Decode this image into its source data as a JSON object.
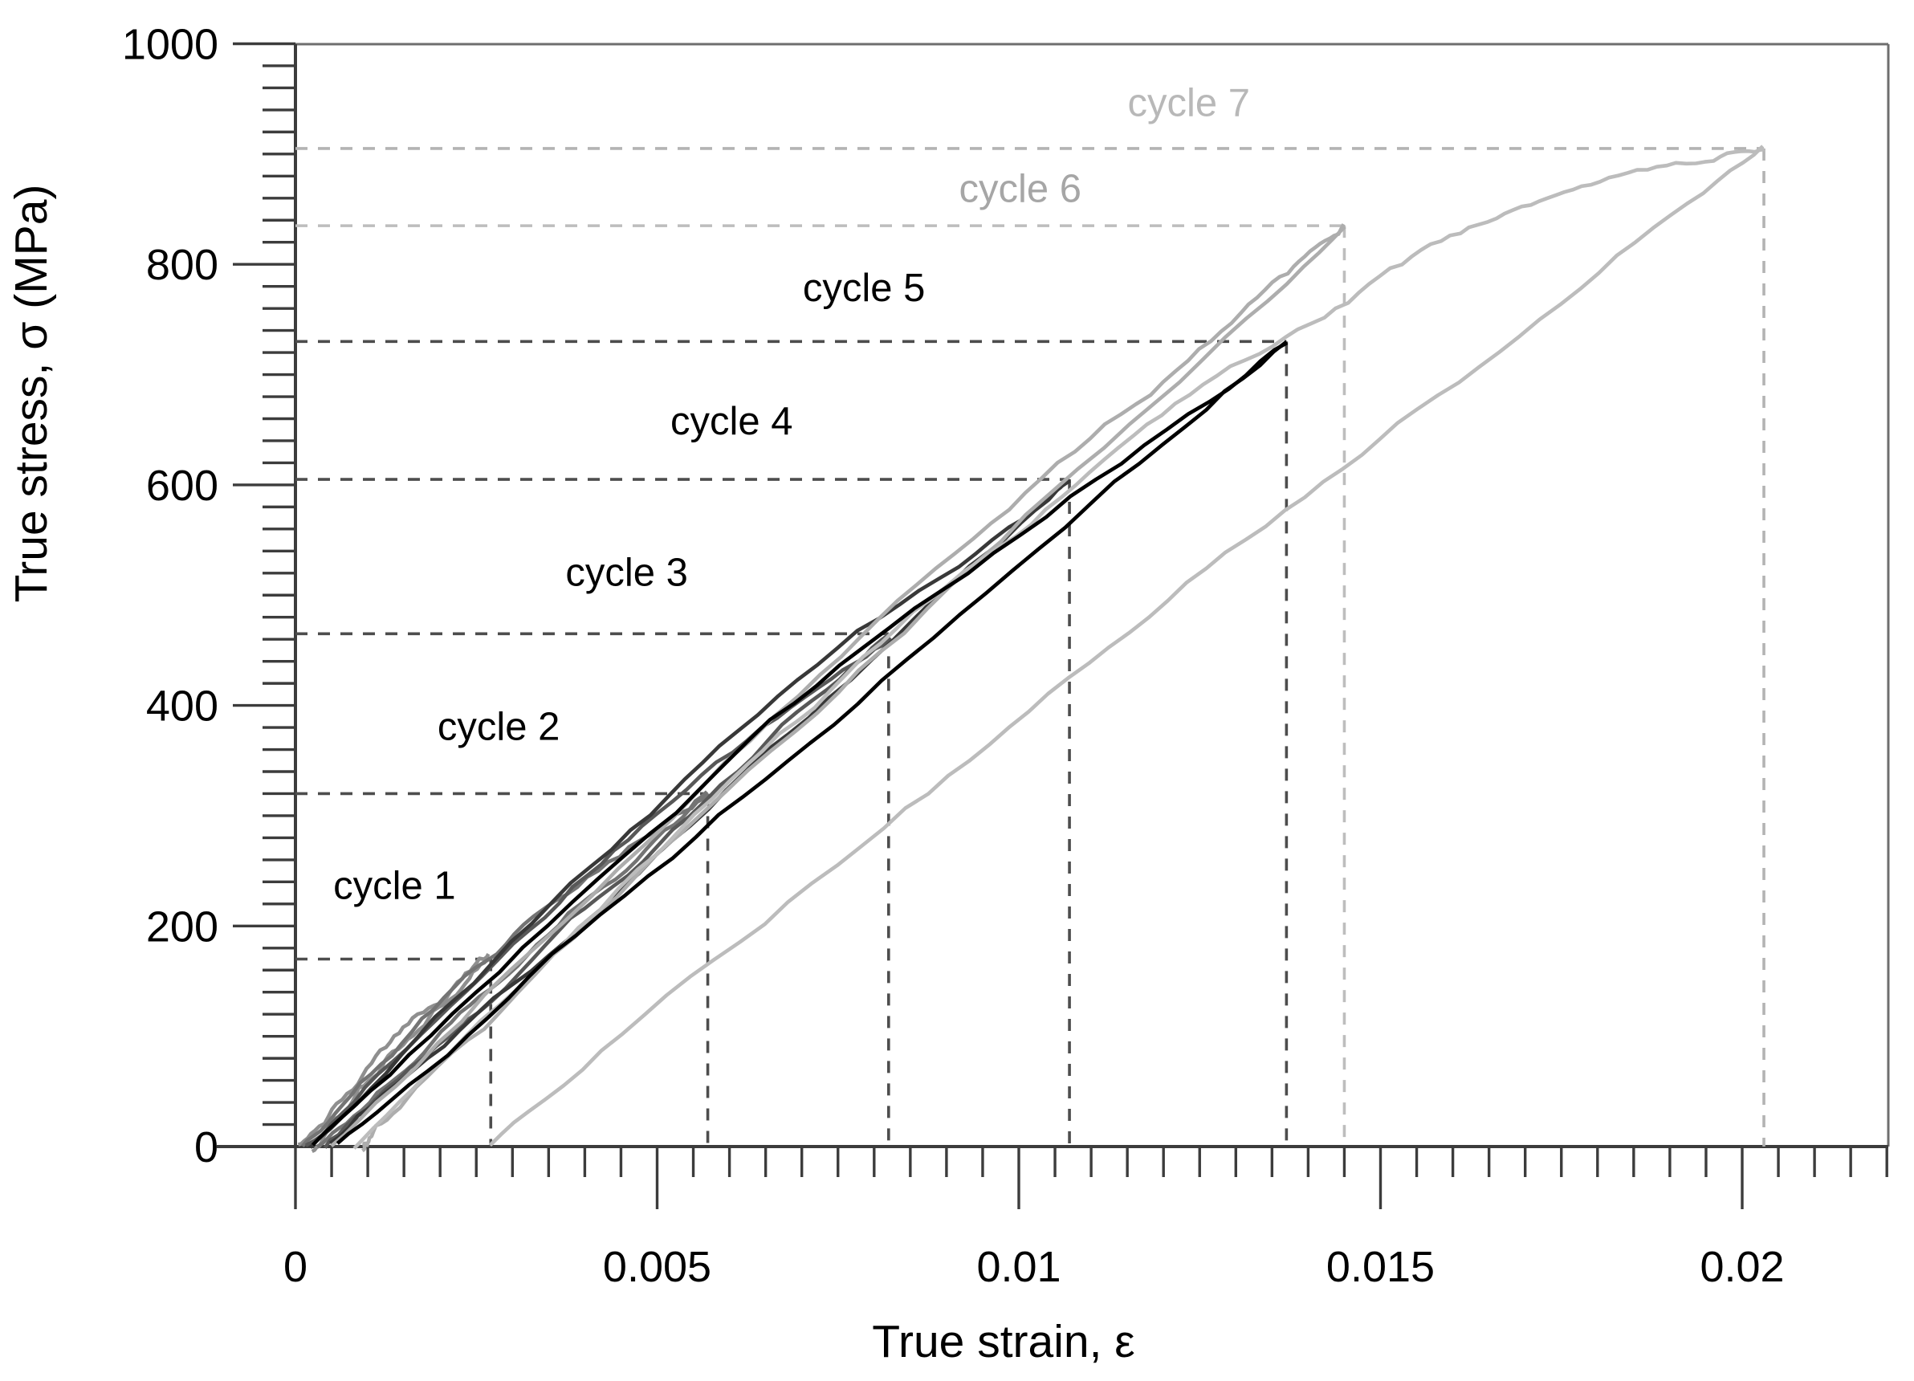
{
  "figure": {
    "x_axis_title": "True strain, ε",
    "y_axis_title": "True stress, σ (MPa)"
  },
  "chart_data": {
    "type": "line",
    "title": "",
    "xlabel": "True strain, ε",
    "ylabel": "True stress, σ (MPa)",
    "xlim": [
      -0.0011,
      0.02203
    ],
    "ylim": [
      0,
      1000
    ],
    "grid": false,
    "legend": "none (curves annotated with in-plot labels and dashed peak guide lines)",
    "x_ticks": {
      "major_values": [
        0,
        0.005,
        0.01,
        0.015,
        0.02
      ],
      "major_labels": [
        "0",
        "0.005",
        "0.01",
        "0.015",
        "0.02"
      ],
      "minor_step": 0.0005
    },
    "y_ticks": {
      "major_values": [
        0,
        200,
        400,
        600,
        800,
        1000
      ],
      "major_labels": [
        "0",
        "200",
        "400",
        "600",
        "800",
        "1000"
      ],
      "minor_step": 20
    },
    "series": [
      {
        "name": "cycle 1",
        "label": "cycle 1",
        "peak_strain": 0.0027,
        "peak_stress": 170,
        "start_strain": 5e-05,
        "end_strain": 0.0002,
        "color": "#8f8f8f",
        "guide_color": "#4d4d4d",
        "label_color": "#000000",
        "label_pos": {
          "strain": 0.00137,
          "stress": 237
        },
        "load": [
          [
            5e-05,
            0
          ],
          [
            0.0014,
            95
          ],
          [
            0.0027,
            170
          ]
        ],
        "unload": [
          [
            0.0027,
            170
          ],
          [
            0.0013,
            80
          ],
          [
            0.0002,
            0
          ]
        ]
      },
      {
        "name": "cycle 2",
        "label": "cycle 2",
        "peak_strain": 0.0057,
        "peak_stress": 320,
        "start_strain": 0.0001,
        "end_strain": 0.0003,
        "color": "#747474",
        "guide_color": "#4d4d4d",
        "label_color": "#000000",
        "label_pos": {
          "strain": 0.00281,
          "stress": 381
        },
        "load": [
          [
            0.0001,
            0
          ],
          [
            0.0029,
            185
          ],
          [
            0.0057,
            320
          ]
        ],
        "unload": [
          [
            0.0057,
            320
          ],
          [
            0.0028,
            150
          ],
          [
            0.0003,
            0
          ]
        ]
      },
      {
        "name": "cycle 3",
        "label": "cycle 3",
        "peak_strain": 0.0082,
        "peak_stress": 465,
        "start_strain": 0.00015,
        "end_strain": 0.0004,
        "color": "#585858",
        "guide_color": "#4d4d4d",
        "label_color": "#000000",
        "label_pos": {
          "strain": 0.00458,
          "stress": 521
        },
        "load": [
          [
            0.00015,
            0
          ],
          [
            0.0042,
            260
          ],
          [
            0.0082,
            465
          ]
        ],
        "unload": [
          [
            0.0082,
            465
          ],
          [
            0.004,
            215
          ],
          [
            0.0004,
            0
          ]
        ]
      },
      {
        "name": "cycle 4",
        "label": "cycle 4",
        "peak_strain": 0.0107,
        "peak_stress": 605,
        "start_strain": 0.0002,
        "end_strain": 0.0005,
        "color": "#383838",
        "guide_color": "#4d4d4d",
        "label_color": "#000000",
        "label_pos": {
          "strain": 0.00603,
          "stress": 658
        },
        "load": [
          [
            0.0002,
            0
          ],
          [
            0.0054,
            330
          ],
          [
            0.0107,
            605
          ]
        ],
        "unload": [
          [
            0.0107,
            605
          ],
          [
            0.0052,
            280
          ],
          [
            0.0005,
            0
          ]
        ]
      },
      {
        "name": "cycle 5",
        "label": "cycle 5",
        "peak_strain": 0.0137,
        "peak_stress": 730,
        "start_strain": 0.00025,
        "end_strain": 0.0006,
        "color": "#000000",
        "guide_color": "#4d4d4d",
        "label_color": "#000000",
        "label_pos": {
          "strain": 0.00786,
          "stress": 779
        },
        "load": [
          [
            0.00025,
            0
          ],
          [
            0.0069,
            400
          ],
          [
            0.0137,
            730
          ]
        ],
        "unload": [
          [
            0.0137,
            730
          ],
          [
            0.0068,
            350
          ],
          [
            0.0006,
            0
          ]
        ]
      },
      {
        "name": "cycle 6",
        "label": "cycle 6",
        "peak_strain": 0.0145,
        "peak_stress": 835,
        "start_strain": 0.0005,
        "end_strain": 0.0009,
        "color": "#adadad",
        "guide_color": "#bdbdbd",
        "label_color": "#a6a6a6",
        "label_pos": {
          "strain": 0.01002,
          "stress": 869
        },
        "load": [
          [
            0.0005,
            0
          ],
          [
            0.0075,
            450
          ],
          [
            0.0125,
            722
          ],
          [
            0.0145,
            835
          ]
        ],
        "unload": [
          [
            0.0145,
            835
          ],
          [
            0.0078,
            430
          ],
          [
            0.0018,
            65
          ],
          [
            0.0009,
            0
          ]
        ]
      },
      {
        "name": "cycle 7",
        "label": "cycle 7",
        "peak_strain": 0.0203,
        "peak_stress": 905,
        "start_strain": 0.0008,
        "end_strain": 0.0027,
        "color": "#bcbcbc",
        "guide_color": "#b3b3b3",
        "label_color": "#b8b8b8",
        "label_pos": {
          "strain": 0.01235,
          "stress": 947
        },
        "load": [
          [
            0.0008,
            0
          ],
          [
            0.006,
            330
          ],
          [
            0.011,
            610
          ],
          [
            0.015,
            788
          ],
          [
            0.0178,
            868
          ],
          [
            0.0203,
            905
          ]
        ],
        "unload": [
          [
            0.0203,
            905
          ],
          [
            0.015,
            640
          ],
          [
            0.009,
            340
          ],
          [
            0.0027,
            0
          ]
        ]
      }
    ],
    "guide_lines_note": "Each cycle has a horizontal dashed line at its peak stress from the y-axis and a vertical dashed line at its peak strain down to the x-axis."
  }
}
